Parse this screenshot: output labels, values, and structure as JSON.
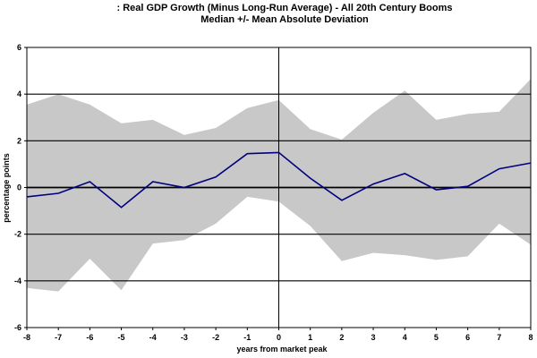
{
  "chart_data": {
    "type": "line",
    "title": ": Real GDP Growth (Minus Long-Run Average) - All 20th Century Booms",
    "subtitle": "Median +/- Mean Absolute Deviation",
    "xlabel": "years from market peak",
    "ylabel": "percentage points",
    "xlim": [
      -8,
      8
    ],
    "ylim": [
      -6,
      6
    ],
    "x": [
      -8,
      -7,
      -6,
      -5,
      -4,
      -3,
      -2,
      -1,
      0,
      1,
      2,
      3,
      4,
      5,
      6,
      7,
      8
    ],
    "x_tick_labels": [
      "-8",
      "-7",
      "-6",
      "-5",
      "-4",
      "-3",
      "-2",
      "-1",
      "0",
      "1",
      "2",
      "3",
      "4",
      "5",
      "6",
      "7",
      "8"
    ],
    "y_ticks": [
      -6,
      -4,
      -2,
      0,
      2,
      4,
      6
    ],
    "y_tick_labels": [
      "-6",
      "-4",
      "-2",
      "0",
      "2",
      "4",
      "6"
    ],
    "grid": "horizontal lines at -4, -2, 0, 2, 4",
    "series": [
      {
        "role": "median",
        "color": "#000080",
        "values": [
          -0.4,
          -0.25,
          0.25,
          -0.85,
          0.25,
          0.0,
          0.45,
          1.45,
          1.5,
          0.4,
          -0.55,
          0.15,
          0.6,
          -0.1,
          0.05,
          0.8,
          1.05
        ]
      },
      {
        "role": "band_upper",
        "color": "#c8c8c8",
        "values": [
          3.55,
          4.0,
          3.55,
          2.75,
          2.9,
          2.25,
          2.55,
          3.4,
          3.75,
          2.5,
          2.05,
          3.2,
          4.15,
          2.9,
          3.15,
          3.25,
          4.65
        ]
      },
      {
        "role": "band_lower",
        "color": "#c8c8c8",
        "values": [
          -4.3,
          -4.45,
          -3.05,
          -4.4,
          -2.4,
          -2.25,
          -1.55,
          -0.4,
          -0.6,
          -1.65,
          -3.15,
          -2.8,
          -2.9,
          -3.1,
          -2.95,
          -1.55,
          -2.45
        ]
      }
    ]
  }
}
